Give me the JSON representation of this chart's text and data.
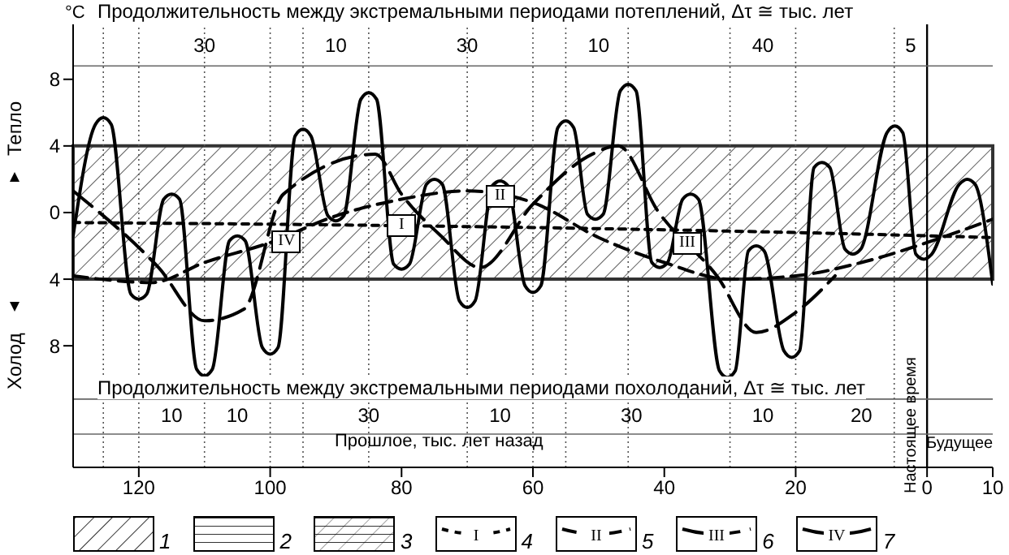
{
  "chart_data": {
    "type": "line",
    "title": "Продолжительность между экстремальными периодами потеплений, Δτ ≅ тыс. лет",
    "ylabel": "°C",
    "xlim": [
      130,
      -10
    ],
    "xticks": [
      120,
      100,
      80,
      60,
      40,
      20,
      0,
      {
        "value": -10,
        "label": "10"
      }
    ],
    "ylim": [
      -15.3,
      11.3
    ],
    "yticks": [
      {
        "value": 8,
        "label": "8"
      },
      {
        "value": 4,
        "label": "4"
      },
      0,
      {
        "value": -4,
        "label": "4"
      },
      {
        "value": -8,
        "label": "8"
      }
    ],
    "grid": false,
    "legend": "bottom",
    "marker": "none",
    "series": [
      {
        "name": "I",
        "color": "#000000",
        "line_style": "dotted",
        "x": [
          130,
          100,
          60,
          20,
          -10
        ],
        "values": [
          -0.6,
          -0.7,
          -0.9,
          -1.2,
          -1.5
        ]
      },
      {
        "name": "II",
        "color": "#000000",
        "line_style": "dashed",
        "x": [
          130,
          118,
          110,
          100,
          90,
          80,
          70,
          60,
          50,
          40,
          30,
          20,
          10,
          0,
          -10
        ],
        "values": [
          -3.8,
          -4.2,
          -3,
          -1.8,
          -0.2,
          0.8,
          1.3,
          0.6,
          -1.5,
          -3,
          -4,
          -3.8,
          -3,
          -1.8,
          -0.4
        ]
      },
      {
        "name": "III",
        "color": "#000000",
        "line_style": "dashed",
        "x": [
          130,
          117,
          110,
          104,
          98,
          84,
          80,
          74,
          68,
          60,
          51,
          47,
          41,
          32,
          26,
          20,
          14
        ],
        "values": [
          1.3,
          -3.3,
          -6.5,
          -5.8,
          1.1,
          3.5,
          1.1,
          -1.4,
          -3.3,
          0.5,
          3.5,
          4,
          0.1,
          -3.8,
          -7.2,
          -6,
          -3.8
        ]
      },
      {
        "name": "IV",
        "color": "#000000",
        "line_style": "solid",
        "x": [
          130,
          126.6,
          125.4,
          124.2,
          121.2,
          120,
          118.8,
          116.2,
          115,
          113.8,
          111.2,
          110,
          108.8,
          106.2,
          105,
          103.8,
          101.2,
          100,
          98.8,
          96.2,
          95,
          93.8,
          91.2,
          90,
          88.8,
          86.2,
          85,
          83.8,
          81.2,
          80,
          78.8,
          76.2,
          75,
          73.8,
          71.2,
          70,
          68.8,
          66.2,
          65,
          63.8,
          61.2,
          60,
          58.8,
          56.2,
          55,
          53.8,
          51.7,
          50.5,
          49.3,
          46.7,
          45.5,
          44.3,
          41.9,
          40.7,
          39.5,
          37.2,
          36,
          34.8,
          31.6,
          30.4,
          29.2,
          27.2,
          26,
          24.8,
          21.8,
          20.6,
          19.4,
          17.2,
          16,
          14.8,
          12.5,
          11.3,
          10.1,
          6.1,
          4.9,
          3.7,
          1.7,
          0.5,
          -0.7,
          -4.9,
          -6.1,
          -7.3,
          -10
        ],
        "values": [
          -1.4,
          5.3,
          5.7,
          5.3,
          -4.9,
          -5.2,
          -4.9,
          0.8,
          1.1,
          0.8,
          -9.4,
          -9.8,
          -9.4,
          -1.7,
          -1.4,
          -1.7,
          -8.1,
          -8.5,
          -8.1,
          4.6,
          5,
          4.6,
          -0.2,
          -0.5,
          -0.2,
          6.8,
          7.2,
          6.8,
          -3.1,
          -3.4,
          -3.1,
          1.7,
          2,
          1.7,
          -5.3,
          -5.7,
          -5.3,
          1.6,
          1.9,
          1.6,
          -4.4,
          -4.8,
          -4.4,
          5.1,
          5.5,
          5.1,
          -0.1,
          -0.4,
          -0.1,
          7.3,
          7.7,
          7.3,
          -3,
          -3.3,
          -3,
          0.8,
          1.1,
          0.8,
          -9.5,
          -9.9,
          -9.5,
          -2.3,
          -2,
          -2.3,
          -8.3,
          -8.7,
          -8.3,
          2.7,
          3,
          2.7,
          -2.2,
          -2.5,
          -2.2,
          4.8,
          5.2,
          4.8,
          -2.5,
          -2.8,
          -2.5,
          1.7,
          2,
          1.7,
          -4.3
        ]
      }
    ],
    "bands": [
      {
        "axis": "y",
        "from": -4,
        "to": 4,
        "color": "#333333"
      }
    ],
    "ref_lines": [
      {
        "axis": "x",
        "value": 0,
        "label": "Настоящее время",
        "color": "#000000",
        "line_style": "solid"
      },
      {
        "axis": "y",
        "value": 8.8,
        "color": "#666666",
        "line_style": "solid"
      },
      {
        "axis": "y",
        "value": -11.2,
        "color": "#666666",
        "line_style": "solid"
      },
      {
        "axis": "y",
        "value": -13.3,
        "color": "#666666",
        "line_style": "solid"
      },
      {
        "axis": "x",
        "value": 125.4,
        "color": "#555555",
        "line_style": "dotted"
      },
      {
        "axis": "x",
        "value": 95,
        "color": "#555555",
        "line_style": "dotted"
      },
      {
        "axis": "x",
        "value": 85,
        "color": "#555555",
        "line_style": "dotted"
      },
      {
        "axis": "x",
        "value": 55,
        "color": "#555555",
        "line_style": "dotted"
      },
      {
        "axis": "x",
        "value": 45.5,
        "color": "#555555",
        "line_style": "dotted"
      },
      {
        "axis": "x",
        "value": 5,
        "color": "#555555",
        "line_style": "dotted"
      },
      {
        "axis": "x",
        "value": 120,
        "color": "#555555",
        "line_style": "dotted"
      },
      {
        "axis": "x",
        "value": 110,
        "color": "#555555",
        "line_style": "dotted"
      },
      {
        "axis": "x",
        "value": 100,
        "color": "#555555",
        "line_style": "dotted"
      },
      {
        "axis": "x",
        "value": 70,
        "color": "#555555",
        "line_style": "dotted"
      },
      {
        "axis": "x",
        "value": 60,
        "color": "#555555",
        "line_style": "dotted"
      },
      {
        "axis": "x",
        "value": 30,
        "color": "#555555",
        "line_style": "dotted"
      },
      {
        "axis": "x",
        "value": 20,
        "color": "#555555",
        "line_style": "dotted"
      }
    ],
    "annotations": [
      "30",
      "10",
      "30",
      "10",
      "40",
      "5",
      "10",
      "10",
      "30",
      "10",
      "30",
      "10",
      "20",
      "Продолжительность между экстремальными периодами похолоданий, Δτ ≅ тыс. лет",
      "Прошлое, тыс. лет назад",
      "Будущее",
      "Тепло",
      "Холод",
      "1",
      "2",
      "3",
      "4",
      "5",
      "6",
      "7"
    ]
  }
}
